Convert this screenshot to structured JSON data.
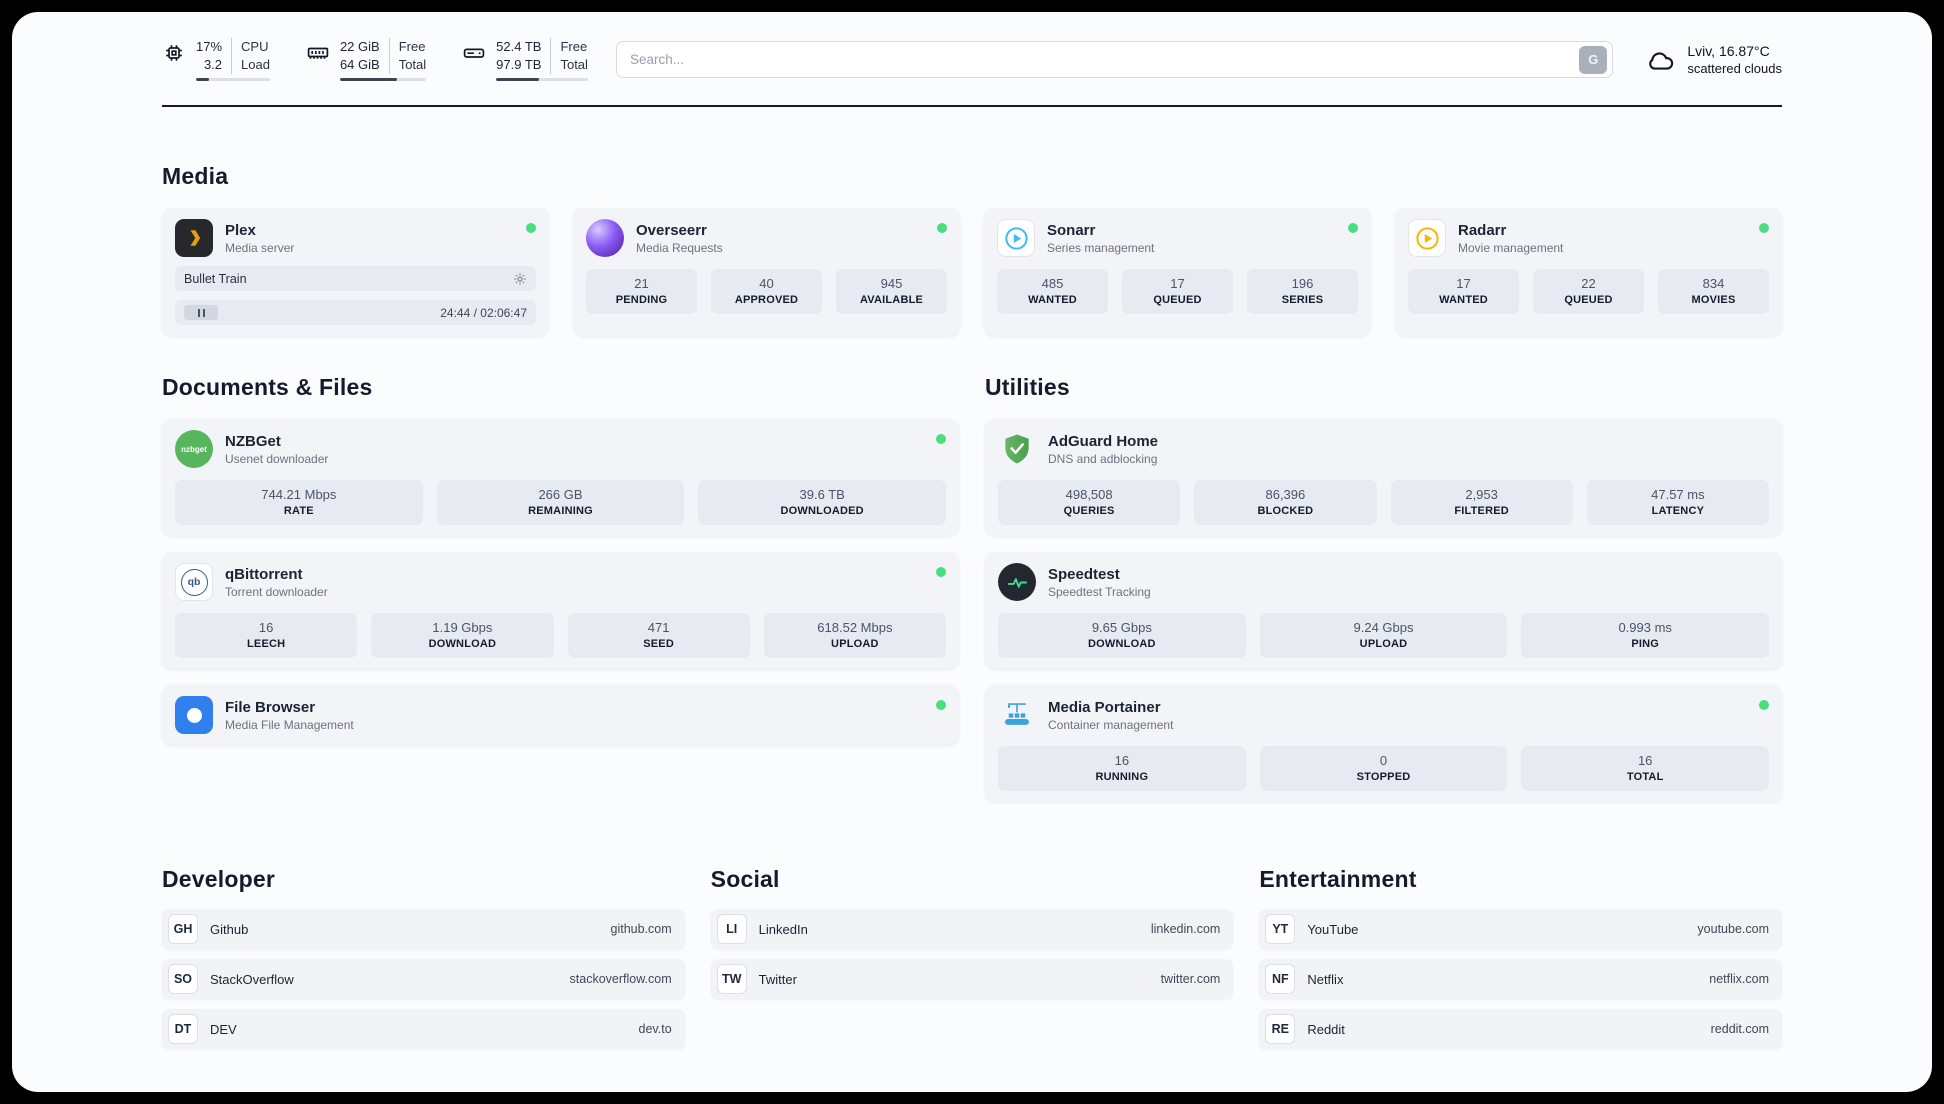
{
  "header": {
    "hardware": [
      {
        "value1": "17%",
        "value2": "3.2",
        "label1": "CPU",
        "label2": "Load",
        "percent": 17
      },
      {
        "value1": "22 GiB",
        "value2": "64 GiB",
        "label1": "Free",
        "label2": "Total",
        "percent": 66
      },
      {
        "value1": "52.4 TB",
        "value2": "97.9 TB",
        "label1": "Free",
        "label2": "Total",
        "percent": 47
      }
    ],
    "search": {
      "placeholder": "Search...",
      "button_label": "G"
    },
    "weather": {
      "location": "Lviv, 16.87°C",
      "condition": "scattered clouds"
    }
  },
  "sections": {
    "media": {
      "title": "Media",
      "cards": [
        {
          "name": "Plex",
          "subtitle": "Media server",
          "online": true,
          "now_playing": {
            "title": "Bullet Train",
            "time": "24:44 / 02:06:47"
          }
        },
        {
          "name": "Overseerr",
          "subtitle": "Media Requests",
          "online": true,
          "stats": [
            {
              "value": "21",
              "label": "PENDING"
            },
            {
              "value": "40",
              "label": "APPROVED"
            },
            {
              "value": "945",
              "label": "AVAILABLE"
            }
          ]
        },
        {
          "name": "Sonarr",
          "subtitle": "Series management",
          "online": true,
          "stats": [
            {
              "value": "485",
              "label": "WANTED"
            },
            {
              "value": "17",
              "label": "QUEUED"
            },
            {
              "value": "196",
              "label": "SERIES"
            }
          ]
        },
        {
          "name": "Radarr",
          "subtitle": "Movie management",
          "online": true,
          "stats": [
            {
              "value": "17",
              "label": "WANTED"
            },
            {
              "value": "22",
              "label": "QUEUED"
            },
            {
              "value": "834",
              "label": "MOVIES"
            }
          ]
        }
      ]
    },
    "documents": {
      "title": "Documents & Files",
      "cards": [
        {
          "name": "NZBGet",
          "subtitle": "Usenet downloader",
          "online": true,
          "icon_text": "nzbget",
          "stats": [
            {
              "value": "744.21 Mbps",
              "label": "RATE"
            },
            {
              "value": "266 GB",
              "label": "REMAINING"
            },
            {
              "value": "39.6 TB",
              "label": "DOWNLOADED"
            }
          ]
        },
        {
          "name": "qBittorrent",
          "subtitle": "Torrent downloader",
          "online": true,
          "icon_text": "qb",
          "stats": [
            {
              "value": "16",
              "label": "LEECH"
            },
            {
              "value": "1.19 Gbps",
              "label": "DOWNLOAD"
            },
            {
              "value": "471",
              "label": "SEED"
            },
            {
              "value": "618.52 Mbps",
              "label": "UPLOAD"
            }
          ]
        },
        {
          "name": "File Browser",
          "subtitle": "Media File Management",
          "online": true
        }
      ]
    },
    "utilities": {
      "title": "Utilities",
      "cards": [
        {
          "name": "AdGuard Home",
          "subtitle": "DNS and adblocking",
          "online": false,
          "stats": [
            {
              "value": "498,508",
              "label": "QUERIES"
            },
            {
              "value": "86,396",
              "label": "BLOCKED"
            },
            {
              "value": "2,953",
              "label": "FILTERED"
            },
            {
              "value": "47.57 ms",
              "label": "LATENCY"
            }
          ]
        },
        {
          "name": "Speedtest",
          "subtitle": "Speedtest Tracking",
          "online": false,
          "stats": [
            {
              "value": "9.65 Gbps",
              "label": "DOWNLOAD"
            },
            {
              "value": "9.24 Gbps",
              "label": "UPLOAD"
            },
            {
              "value": "0.993 ms",
              "label": "PING"
            }
          ]
        },
        {
          "name": "Media Portainer",
          "subtitle": "Container management",
          "online": true,
          "stats": [
            {
              "value": "16",
              "label": "RUNNING"
            },
            {
              "value": "0",
              "label": "STOPPED"
            },
            {
              "value": "16",
              "label": "TOTAL"
            }
          ]
        }
      ]
    },
    "bookmarks": [
      {
        "title": "Developer",
        "links": [
          {
            "abbr": "GH",
            "name": "Github",
            "domain": "github.com"
          },
          {
            "abbr": "SO",
            "name": "StackOverflow",
            "domain": "stackoverflow.com"
          },
          {
            "abbr": "DT",
            "name": "DEV",
            "domain": "dev.to"
          }
        ]
      },
      {
        "title": "Social",
        "links": [
          {
            "abbr": "LI",
            "name": "LinkedIn",
            "domain": "linkedin.com"
          },
          {
            "abbr": "TW",
            "name": "Twitter",
            "domain": "twitter.com"
          }
        ]
      },
      {
        "title": "Entertainment",
        "links": [
          {
            "abbr": "YT",
            "name": "YouTube",
            "domain": "youtube.com"
          },
          {
            "abbr": "NF",
            "name": "Netflix",
            "domain": "netflix.com"
          },
          {
            "abbr": "RE",
            "name": "Reddit",
            "domain": "reddit.com"
          }
        ]
      }
    ]
  },
  "colors": {
    "status_online": "#4ade80",
    "plex_accent": "#e5a00d",
    "sonarr_accent": "#38bdf8",
    "radarr_accent": "#f6b50d",
    "adguard_accent": "#5aab5c",
    "speedtest_accent": "#3ddc97",
    "portainer_accent": "#3aa3dd",
    "filebrowser_accent": "#2f80ed"
  }
}
